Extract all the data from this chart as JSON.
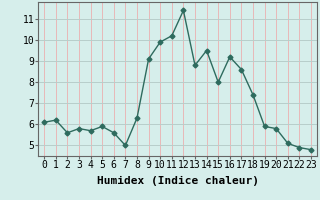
{
  "x": [
    0,
    1,
    2,
    3,
    4,
    5,
    6,
    7,
    8,
    9,
    10,
    11,
    12,
    13,
    14,
    15,
    16,
    17,
    18,
    19,
    20,
    21,
    22,
    23
  ],
  "y": [
    6.1,
    6.2,
    5.6,
    5.8,
    5.7,
    5.9,
    5.6,
    5.0,
    6.3,
    9.1,
    9.9,
    10.2,
    11.4,
    8.8,
    9.5,
    8.0,
    9.2,
    8.6,
    7.4,
    5.9,
    5.8,
    5.1,
    4.9,
    4.8
  ],
  "xlabel": "Humidex (Indice chaleur)",
  "ylabel": "",
  "xlim": [
    -0.5,
    23.5
  ],
  "ylim": [
    4.5,
    11.8
  ],
  "yticks": [
    5,
    6,
    7,
    8,
    9,
    10,
    11
  ],
  "xticks": [
    0,
    1,
    2,
    3,
    4,
    5,
    6,
    7,
    8,
    9,
    10,
    11,
    12,
    13,
    14,
    15,
    16,
    17,
    18,
    19,
    20,
    21,
    22,
    23
  ],
  "line_color": "#2e6b5e",
  "marker": "D",
  "marker_size": 2.5,
  "bg_color": "#d6eeeb",
  "grid_color_h": "#b8ceca",
  "grid_color_v": "#e8b8b8",
  "xlabel_fontsize": 8,
  "tick_fontsize": 7,
  "spine_color": "#666666"
}
